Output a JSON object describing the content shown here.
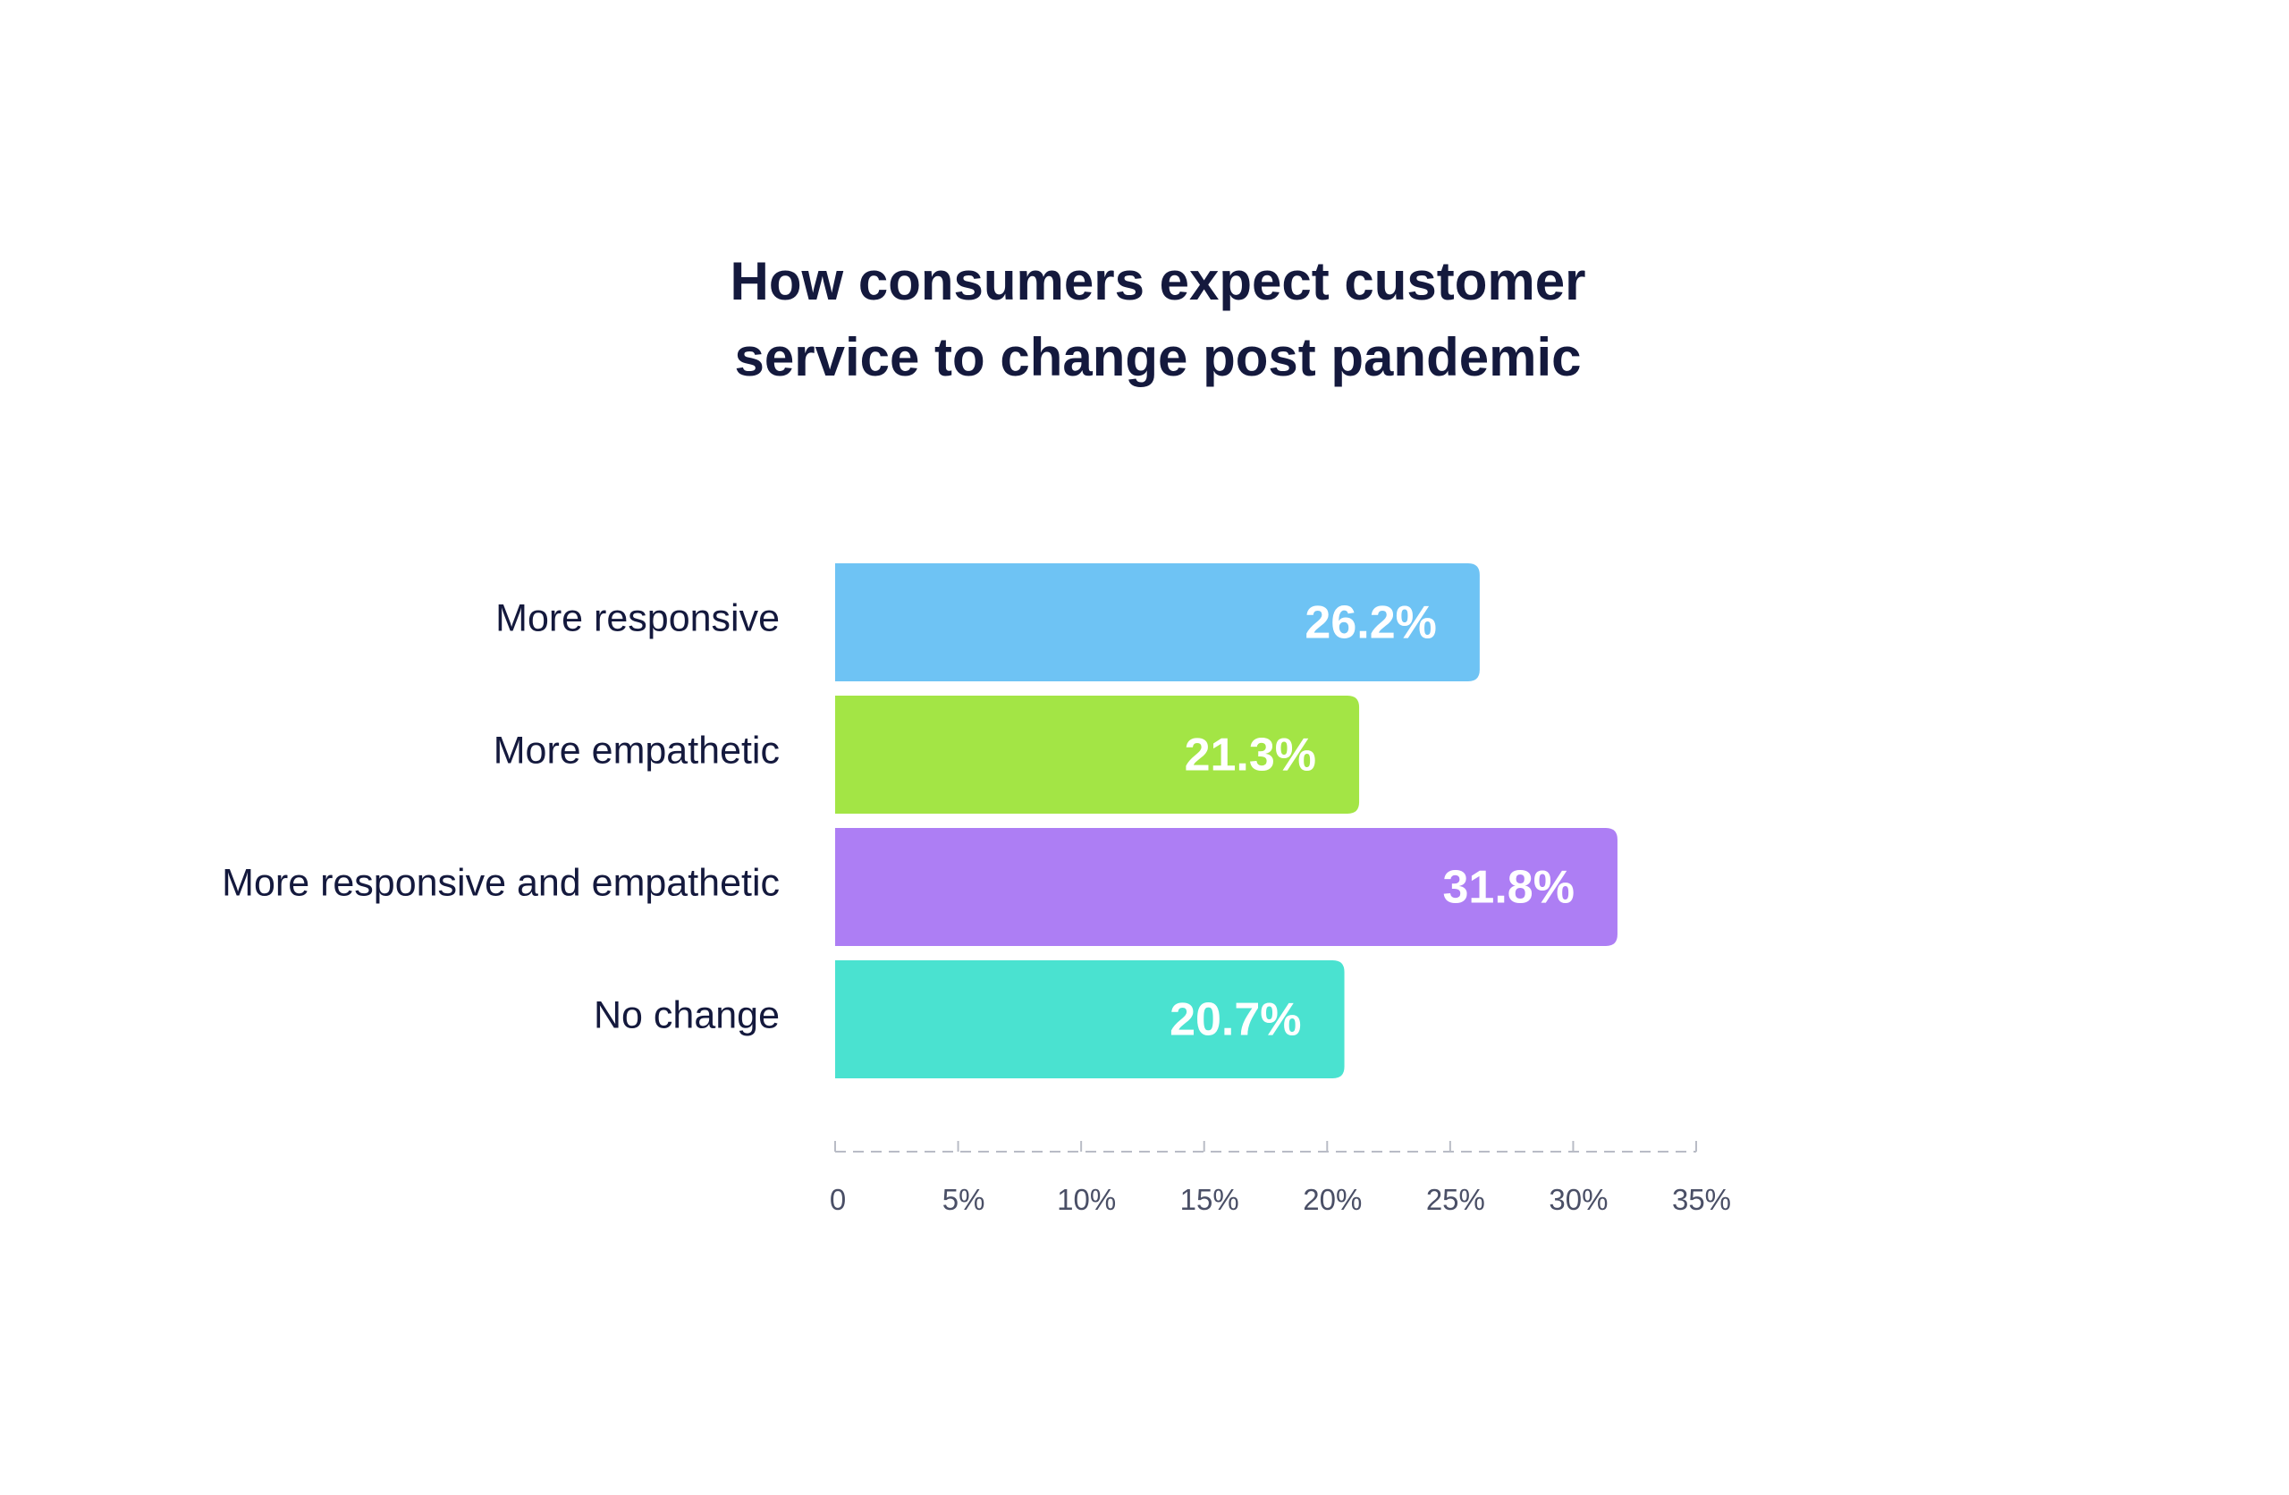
{
  "chart_data": {
    "type": "bar",
    "orientation": "horizontal",
    "title_lines": [
      "How consumers expect customer",
      "service to change post pandemic"
    ],
    "categories": [
      "More responsive",
      "More empathetic",
      "More responsive and empathetic",
      "No change"
    ],
    "values": [
      26.2,
      21.3,
      31.8,
      20.7
    ],
    "value_labels": [
      "26.2%",
      "21.3%",
      "31.8%",
      "20.7%"
    ],
    "colors": [
      "#6ec3f4",
      "#a3e545",
      "#ad7ef4",
      "#4ae2d0"
    ],
    "xlim": [
      0,
      35
    ],
    "x_ticks": [
      0,
      5,
      10,
      15,
      20,
      25,
      30,
      35
    ],
    "x_tick_labels": [
      "0",
      "5%",
      "10%",
      "15%",
      "20%",
      "25%",
      "30%",
      "35%"
    ],
    "xlabel": "",
    "ylabel": "",
    "grid": false,
    "legend": "none"
  },
  "colors": {
    "title": "#14193d",
    "label": "#14193d",
    "tick": "#4a4f66",
    "axis": "#b9bcc6",
    "background": "#ffffff"
  }
}
